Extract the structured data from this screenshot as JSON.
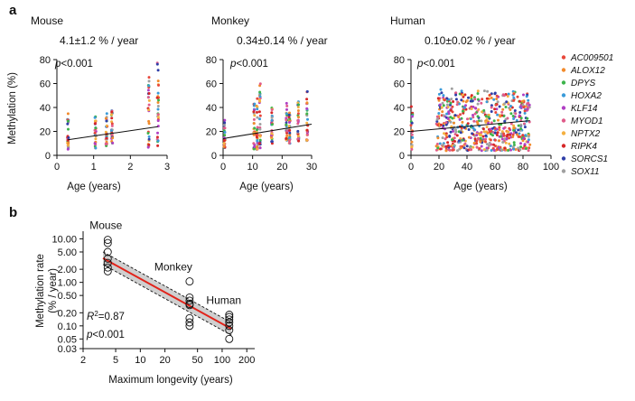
{
  "panel_labels": {
    "a": "a",
    "b": "b"
  },
  "panel_a": {
    "ylabel": "Methylation (%)",
    "xlabel": "Age (years)",
    "legend": [
      {
        "name": "AC009501",
        "color": "#e8473a"
      },
      {
        "name": "ALOX12",
        "color": "#f28b2c"
      },
      {
        "name": "DPYS",
        "color": "#3cb44b"
      },
      {
        "name": "HOXA2",
        "color": "#3a9bd9"
      },
      {
        "name": "KLF14",
        "color": "#b03fc4"
      },
      {
        "name": "MYOD1",
        "color": "#e05c8a"
      },
      {
        "name": "NPTX2",
        "color": "#f4b040"
      },
      {
        "name": "RIPK4",
        "color": "#d62728"
      },
      {
        "name": "SORCS1",
        "color": "#2f3fa8"
      },
      {
        "name": "SOX11",
        "color": "#a0a0a0"
      }
    ]
  },
  "chart_data": [
    {
      "type": "scatter",
      "panel": "a",
      "title": "Mouse",
      "subtitle": "4.1±1.2 % / year",
      "annotation": "p<0.001",
      "xlabel": "Age (years)",
      "ylabel": "Methylation (%)",
      "xlim": [
        0,
        3
      ],
      "ylim": [
        0,
        80
      ],
      "xticks": [
        0,
        1,
        2,
        3
      ],
      "yticks": [
        0,
        20,
        40,
        60,
        80
      ],
      "age_groups": [
        {
          "x": 0.3,
          "ymin": 4,
          "ymax": 35
        },
        {
          "x": 1.05,
          "ymin": 6,
          "ymax": 34
        },
        {
          "x": 1.35,
          "ymin": 8,
          "ymax": 35
        },
        {
          "x": 1.5,
          "ymin": 10,
          "ymax": 38
        },
        {
          "x": 2.5,
          "ymin": 6,
          "ymax": 66
        },
        {
          "x": 2.75,
          "ymin": 8,
          "ymax": 78
        }
      ],
      "trend": {
        "x": [
          0.3,
          2.75
        ],
        "y": [
          13,
          24
        ]
      }
    },
    {
      "type": "scatter",
      "panel": "a",
      "title": "Monkey",
      "subtitle": "0.34±0.14 % / year",
      "annotation": "p<0.001",
      "xlabel": "Age (years)",
      "xlim": [
        0,
        30
      ],
      "ylim": [
        0,
        80
      ],
      "xticks": [
        0,
        10,
        20,
        30
      ],
      "age_groups": [
        {
          "x": 0.5,
          "ymin": 6,
          "ymax": 30
        },
        {
          "x": 10.5,
          "ymin": 5,
          "ymax": 45
        },
        {
          "x": 11.5,
          "ymin": 5,
          "ymax": 52
        },
        {
          "x": 12.5,
          "ymin": 6,
          "ymax": 60
        },
        {
          "x": 16.5,
          "ymin": 10,
          "ymax": 40
        },
        {
          "x": 21.5,
          "ymin": 12,
          "ymax": 45
        },
        {
          "x": 22.5,
          "ymin": 10,
          "ymax": 40
        },
        {
          "x": 25.5,
          "ymin": 12,
          "ymax": 48
        },
        {
          "x": 28.5,
          "ymin": 12,
          "ymax": 60
        }
      ],
      "trend": {
        "x": [
          0,
          30
        ],
        "y": [
          14,
          26
        ]
      }
    },
    {
      "type": "scatter",
      "panel": "a",
      "title": "Human",
      "subtitle": "0.10±0.02 % / year",
      "annotation": "p<0.001",
      "xlabel": "Age (years)",
      "xlim": [
        0,
        100
      ],
      "ylim": [
        0,
        80
      ],
      "xticks": [
        0,
        20,
        40,
        60,
        80,
        100
      ],
      "age_range": [
        18,
        85
      ],
      "trend": {
        "x": [
          0,
          85
        ],
        "y": [
          20,
          29
        ]
      }
    },
    {
      "type": "scatter",
      "panel": "b",
      "xlabel": "Maximum longevity (years)",
      "ylabel": "Methylation rate (% / year)",
      "x_scale": "log",
      "y_scale": "log",
      "xlim": [
        2,
        250
      ],
      "ylim": [
        0.03,
        15
      ],
      "xticks": [
        2,
        5,
        10,
        20,
        50,
        100,
        200
      ],
      "yticks": [
        0.03,
        0.05,
        0.1,
        0.2,
        0.5,
        1.0,
        2.0,
        5.0,
        10.0
      ],
      "ytick_labels": [
        "0.03",
        "0.05",
        "0.10",
        "0.20",
        "0.50",
        "1.00",
        "2.00",
        "5.00",
        "10.00"
      ],
      "groups": [
        {
          "label": "Mouse",
          "x": 4,
          "values": [
            9.5,
            8.0,
            5.0,
            3.5,
            2.8,
            2.2,
            1.8
          ]
        },
        {
          "label": "Monkey",
          "x": 40,
          "values": [
            1.05,
            0.45,
            0.38,
            0.32,
            0.3,
            0.15,
            0.12,
            0.1
          ]
        },
        {
          "label": "Human",
          "x": 122,
          "values": [
            0.18,
            0.16,
            0.14,
            0.12,
            0.1,
            0.08,
            0.05
          ]
        }
      ],
      "fit": {
        "x": [
          3.5,
          130
        ],
        "y": [
          3.6,
          0.085
        ]
      },
      "annotations": [
        "R2=0.87",
        "p<0.001"
      ],
      "r_squared": "=0.87",
      "p_value": "p<0.001"
    }
  ]
}
